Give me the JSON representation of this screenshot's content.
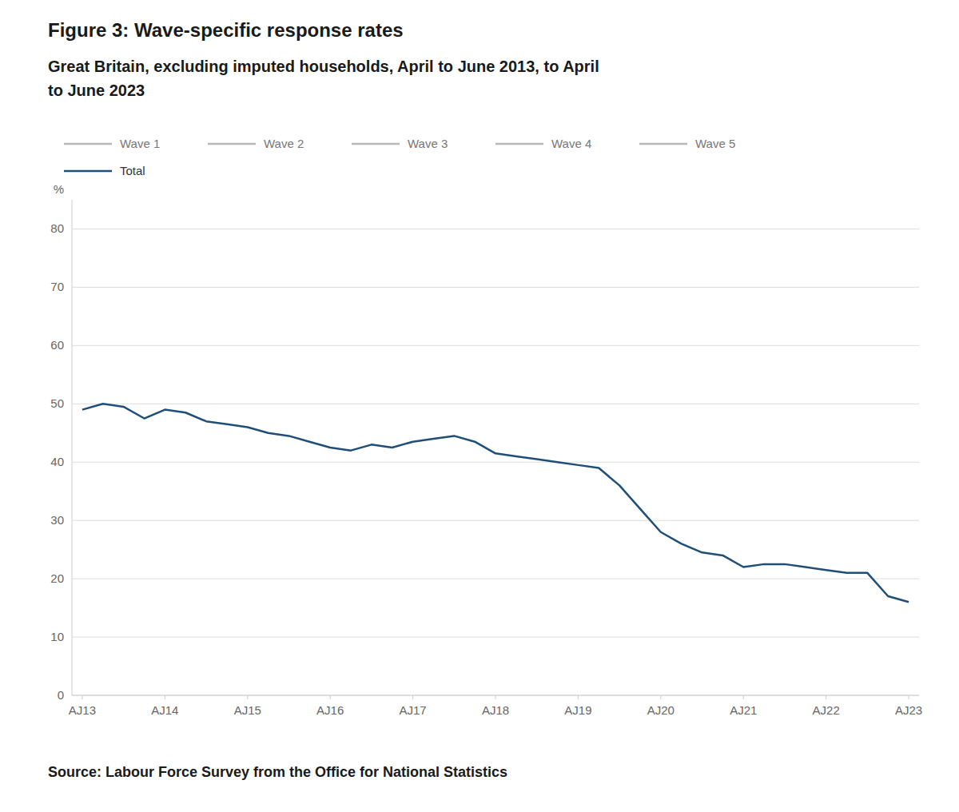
{
  "chart_data": {
    "type": "line",
    "title": "Figure 3: Wave-specific response rates",
    "subtitle": [
      "Great Britain, excluding imputed households, April to June 2013, to April",
      "to June 2023"
    ],
    "source": "Source: Labour Force Survey from the Office for National Statistics",
    "ylabel": "%",
    "x": [
      0,
      1,
      2,
      3,
      4,
      5,
      6,
      7,
      8,
      9,
      10,
      11,
      12,
      13,
      14,
      15,
      16,
      17,
      18,
      19,
      20,
      21,
      22,
      23,
      24,
      25,
      26,
      27,
      28,
      29,
      30,
      31,
      32,
      33,
      34,
      35,
      36,
      37,
      38,
      39,
      40
    ],
    "xlim": [
      -0.5,
      40.5
    ],
    "xticks": [
      {
        "value": 0,
        "label": "AJ13"
      },
      {
        "value": 4,
        "label": "AJ14"
      },
      {
        "value": 8,
        "label": "AJ15"
      },
      {
        "value": 12,
        "label": "AJ16"
      },
      {
        "value": 16,
        "label": "AJ17"
      },
      {
        "value": 20,
        "label": "AJ18"
      },
      {
        "value": 24,
        "label": "AJ19"
      },
      {
        "value": 28,
        "label": "AJ20"
      },
      {
        "value": 32,
        "label": "AJ21"
      },
      {
        "value": 36,
        "label": "AJ22"
      },
      {
        "value": 40,
        "label": "AJ23"
      }
    ],
    "ylim": [
      0,
      85
    ],
    "yticks": [
      0,
      10,
      20,
      30,
      40,
      50,
      60,
      70,
      80
    ],
    "grid": true,
    "legend": "top-left",
    "series": [
      {
        "name": "Wave 1",
        "color": "#b8b8b8",
        "values": [
          null,
          null,
          null,
          null,
          null,
          null,
          null,
          null,
          null,
          null,
          null,
          null,
          null,
          null,
          null,
          null,
          null,
          null,
          null,
          null,
          null,
          null,
          null,
          null,
          null,
          null,
          null,
          null,
          null,
          null,
          null,
          null,
          null,
          null,
          null,
          null,
          null,
          null,
          null,
          null,
          null
        ]
      },
      {
        "name": "Wave 2",
        "color": "#b8b8b8",
        "values": [
          null,
          null,
          null,
          null,
          null,
          null,
          null,
          null,
          null,
          null,
          null,
          null,
          null,
          null,
          null,
          null,
          null,
          null,
          null,
          null,
          null,
          null,
          null,
          null,
          null,
          null,
          null,
          null,
          null,
          null,
          null,
          null,
          null,
          null,
          null,
          null,
          null,
          null,
          null,
          null,
          null
        ]
      },
      {
        "name": "Wave 3",
        "color": "#b8b8b8",
        "values": [
          null,
          null,
          null,
          null,
          null,
          null,
          null,
          null,
          null,
          null,
          null,
          null,
          null,
          null,
          null,
          null,
          null,
          null,
          null,
          null,
          null,
          null,
          null,
          null,
          null,
          null,
          null,
          null,
          null,
          null,
          null,
          null,
          null,
          null,
          null,
          null,
          null,
          null,
          null,
          null,
          null
        ]
      },
      {
        "name": "Wave 4",
        "color": "#b8b8b8",
        "values": [
          null,
          null,
          null,
          null,
          null,
          null,
          null,
          null,
          null,
          null,
          null,
          null,
          null,
          null,
          null,
          null,
          null,
          null,
          null,
          null,
          null,
          null,
          null,
          null,
          null,
          null,
          null,
          null,
          null,
          null,
          null,
          null,
          null,
          null,
          null,
          null,
          null,
          null,
          null,
          null,
          null
        ]
      },
      {
        "name": "Wave 5",
        "color": "#b8b8b8",
        "values": [
          null,
          null,
          null,
          null,
          null,
          null,
          null,
          null,
          null,
          null,
          null,
          null,
          null,
          null,
          null,
          null,
          null,
          null,
          null,
          null,
          null,
          null,
          null,
          null,
          null,
          null,
          null,
          null,
          null,
          null,
          null,
          null,
          null,
          null,
          null,
          null,
          null,
          null,
          null,
          null,
          null
        ]
      },
      {
        "name": "Total",
        "color": "#1f4e79",
        "values": [
          49.0,
          50.0,
          49.5,
          47.5,
          49.0,
          48.5,
          47.0,
          46.5,
          46.0,
          45.0,
          44.5,
          43.5,
          42.5,
          42.0,
          43.0,
          42.5,
          43.5,
          44.0,
          44.5,
          43.5,
          41.5,
          41.0,
          40.5,
          40.0,
          39.5,
          39.0,
          36.0,
          32.0,
          28.0,
          26.0,
          24.5,
          24.0,
          22.0,
          22.5,
          22.5,
          22.0,
          21.5,
          21.0,
          21.0,
          17.0,
          16.0
        ]
      }
    ]
  }
}
